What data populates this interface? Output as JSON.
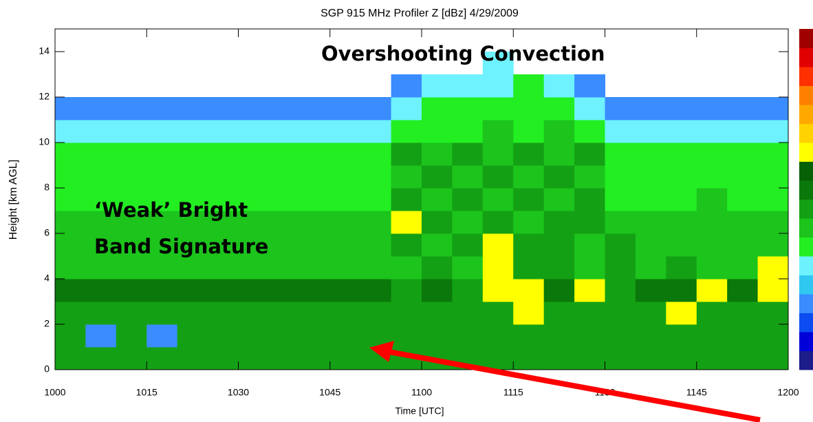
{
  "chart_data": {
    "type": "heatmap",
    "title": "SGP 915 MHz Profiler Z [dBz]  4/29/2009",
    "xlabel": "Time [UTC]",
    "ylabel": "Height [km AGL]",
    "xticks": [
      "1000",
      "1015",
      "1030",
      "1045",
      "1100",
      "1115",
      "1130",
      "1145",
      "1200"
    ],
    "ylim": [
      0,
      15
    ],
    "yticks": [
      0,
      2,
      4,
      6,
      8,
      10,
      12,
      14
    ],
    "annotations": [
      "Overshooting  Convection",
      "‘Weak’ Bright",
      "Band Signature"
    ],
    "colorbar": [
      "#1c1c8a",
      "#0000d8",
      "#0c4cf0",
      "#3a8cff",
      "#30c8f0",
      "#6ef2ff",
      "#22ee22",
      "#1cc41c",
      "#14a014",
      "#0a780a",
      "#066006",
      "#ffff00",
      "#ffd200",
      "#ffa800",
      "#ff8000",
      "#ff3000",
      "#e00000",
      "#a00000"
    ],
    "z": [
      [
        8,
        8,
        8,
        8,
        8,
        8,
        8,
        8,
        8,
        8,
        8,
        8,
        8,
        8,
        8,
        8,
        8,
        8,
        8,
        8,
        8,
        8,
        8,
        8
      ],
      [
        8,
        3,
        8,
        3,
        8,
        8,
        8,
        8,
        8,
        8,
        8,
        8,
        8,
        8,
        8,
        8,
        8,
        8,
        8,
        8,
        8,
        8,
        8,
        8
      ],
      [
        8,
        8,
        8,
        8,
        8,
        8,
        8,
        8,
        8,
        8,
        8,
        8,
        8,
        8,
        8,
        11,
        8,
        8,
        8,
        8,
        11,
        8,
        8,
        8
      ],
      [
        9,
        9,
        9,
        9,
        9,
        9,
        9,
        9,
        9,
        9,
        9,
        8,
        9,
        8,
        11,
        11,
        9,
        11,
        8,
        9,
        9,
        11,
        9,
        11
      ],
      [
        7,
        7,
        7,
        7,
        7,
        7,
        7,
        7,
        7,
        7,
        7,
        7,
        8,
        7,
        11,
        8,
        8,
        7,
        8,
        7,
        8,
        7,
        7,
        11
      ],
      [
        7,
        7,
        7,
        7,
        7,
        7,
        7,
        7,
        7,
        7,
        7,
        8,
        7,
        8,
        11,
        8,
        8,
        7,
        8,
        7,
        7,
        7,
        7,
        7
      ],
      [
        7,
        7,
        7,
        7,
        7,
        7,
        7,
        7,
        7,
        7,
        7,
        11,
        8,
        7,
        8,
        7,
        8,
        8,
        7,
        7,
        7,
        7,
        7,
        7
      ],
      [
        6,
        6,
        6,
        6,
        6,
        6,
        6,
        6,
        6,
        6,
        6,
        8,
        7,
        8,
        7,
        8,
        7,
        8,
        6,
        6,
        6,
        7,
        6,
        6
      ],
      [
        6,
        6,
        6,
        6,
        6,
        6,
        6,
        6,
        6,
        6,
        6,
        7,
        8,
        7,
        8,
        7,
        8,
        7,
        6,
        6,
        6,
        6,
        6,
        6
      ],
      [
        6,
        6,
        6,
        6,
        6,
        6,
        6,
        6,
        6,
        6,
        6,
        8,
        7,
        8,
        7,
        8,
        7,
        8,
        6,
        6,
        6,
        6,
        6,
        6
      ],
      [
        5,
        5,
        5,
        5,
        5,
        5,
        5,
        5,
        5,
        5,
        5,
        6,
        6,
        6,
        7,
        6,
        7,
        6,
        5,
        5,
        5,
        5,
        5,
        5
      ],
      [
        3,
        3,
        3,
        3,
        3,
        3,
        3,
        3,
        3,
        3,
        3,
        5,
        6,
        6,
        6,
        6,
        6,
        5,
        3,
        3,
        3,
        3,
        3,
        3
      ],
      [
        null,
        null,
        null,
        null,
        null,
        null,
        null,
        null,
        null,
        null,
        null,
        3,
        5,
        5,
        5,
        6,
        5,
        3,
        null,
        null,
        null,
        null,
        null,
        null
      ],
      [
        null,
        null,
        null,
        null,
        null,
        null,
        null,
        null,
        null,
        null,
        null,
        null,
        null,
        null,
        5,
        null,
        null,
        null,
        null,
        null,
        null,
        null,
        null,
        null
      ]
    ]
  }
}
